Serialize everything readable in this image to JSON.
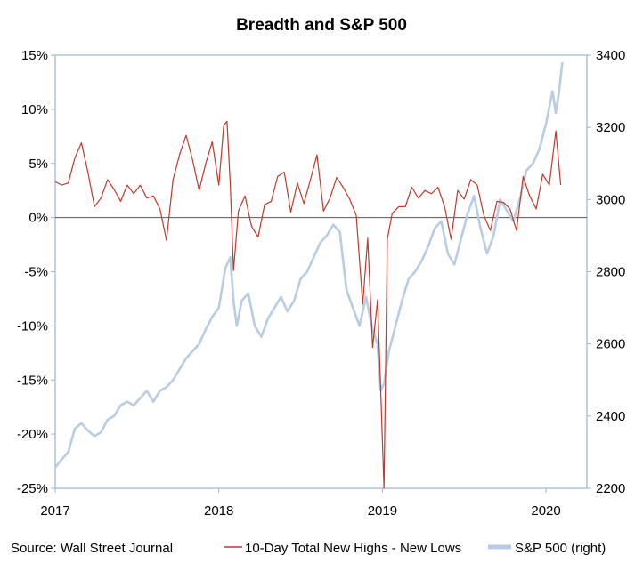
{
  "chart_data": {
    "type": "line",
    "title": "Breadth and S&P 500",
    "source": "Source: Wall Street Journal",
    "x_axis": {
      "tick_labels": [
        "2017",
        "2018",
        "2019",
        "2020"
      ],
      "tick_values": [
        2017,
        2018,
        2019,
        2020
      ],
      "range": [
        2017.0,
        2020.25
      ]
    },
    "y_left": {
      "tick_labels": [
        "15%",
        "10%",
        "5%",
        "0%",
        "-5%",
        "-10%",
        "-15%",
        "-20%",
        "-25%"
      ],
      "tick_values": [
        15,
        10,
        5,
        0,
        -5,
        -10,
        -15,
        -20,
        -25
      ],
      "range": [
        -25,
        15
      ],
      "unit": "%"
    },
    "y_right": {
      "tick_labels": [
        "3400",
        "3200",
        "3000",
        "2800",
        "2600",
        "2400",
        "2200"
      ],
      "tick_values": [
        3400,
        3200,
        3000,
        2800,
        2600,
        2400,
        2200
      ],
      "range": [
        2200,
        3400
      ]
    },
    "zero_line": true,
    "grid": false,
    "legend_position": "bottom",
    "series": [
      {
        "name": "10-Day Total New Highs - New Lows",
        "axis": "left",
        "color": "#c0392b",
        "x": [
          2017.0,
          2017.04,
          2017.08,
          2017.12,
          2017.16,
          2017.2,
          2017.24,
          2017.28,
          2017.32,
          2017.36,
          2017.4,
          2017.44,
          2017.48,
          2017.52,
          2017.56,
          2017.6,
          2017.64,
          2017.68,
          2017.72,
          2017.76,
          2017.8,
          2017.84,
          2017.88,
          2017.92,
          2017.96,
          2018.0,
          2018.03,
          2018.05,
          2018.07,
          2018.09,
          2018.12,
          2018.16,
          2018.2,
          2018.24,
          2018.28,
          2018.32,
          2018.36,
          2018.4,
          2018.44,
          2018.48,
          2018.52,
          2018.56,
          2018.6,
          2018.64,
          2018.68,
          2018.72,
          2018.76,
          2018.8,
          2018.84,
          2018.88,
          2018.91,
          2018.94,
          2018.97,
          2018.99,
          2019.01,
          2019.03,
          2019.06,
          2019.1,
          2019.14,
          2019.18,
          2019.22,
          2019.26,
          2019.3,
          2019.34,
          2019.38,
          2019.42,
          2019.46,
          2019.5,
          2019.54,
          2019.58,
          2019.62,
          2019.66,
          2019.7,
          2019.74,
          2019.78,
          2019.82,
          2019.86,
          2019.9,
          2019.94,
          2019.98,
          2020.02,
          2020.06,
          2020.09
        ],
        "values": [
          3.3,
          3.0,
          3.2,
          5.5,
          6.9,
          4.2,
          1.0,
          1.8,
          3.5,
          2.6,
          1.5,
          3.0,
          2.2,
          3.0,
          1.8,
          2.0,
          0.8,
          -2.1,
          3.5,
          5.8,
          7.6,
          5.3,
          2.5,
          5.0,
          7.0,
          3.0,
          8.5,
          8.9,
          3.0,
          -4.9,
          0.6,
          2.0,
          -0.8,
          -1.8,
          1.2,
          1.5,
          3.8,
          4.2,
          0.5,
          3.2,
          1.3,
          3.5,
          5.8,
          0.6,
          1.8,
          3.7,
          2.8,
          1.7,
          0.2,
          -8.0,
          -1.9,
          -12.0,
          -7.6,
          -16.0,
          -25.0,
          -2.0,
          0.4,
          1.0,
          1.0,
          2.8,
          1.8,
          2.5,
          2.2,
          2.8,
          1.0,
          -2.0,
          2.5,
          1.7,
          3.5,
          3.0,
          0.2,
          -1.2,
          1.5,
          1.4,
          0.8,
          -1.2,
          3.8,
          2.0,
          0.8,
          4.0,
          3.0,
          8.0,
          3.0
        ]
      },
      {
        "name": "S&P 500 (right)",
        "axis": "right",
        "color": "#b8cce4",
        "x": [
          2017.0,
          2017.04,
          2017.08,
          2017.12,
          2017.16,
          2017.2,
          2017.24,
          2017.28,
          2017.32,
          2017.36,
          2017.4,
          2017.44,
          2017.48,
          2017.52,
          2017.56,
          2017.6,
          2017.64,
          2017.68,
          2017.72,
          2017.76,
          2017.8,
          2017.84,
          2017.88,
          2017.92,
          2017.96,
          2018.0,
          2018.04,
          2018.07,
          2018.09,
          2018.11,
          2018.14,
          2018.18,
          2018.22,
          2018.26,
          2018.3,
          2018.34,
          2018.38,
          2018.42,
          2018.46,
          2018.5,
          2018.54,
          2018.58,
          2018.62,
          2018.66,
          2018.7,
          2018.74,
          2018.78,
          2018.82,
          2018.86,
          2018.9,
          2018.94,
          2018.97,
          2018.99,
          2019.01,
          2019.04,
          2019.08,
          2019.12,
          2019.16,
          2019.2,
          2019.24,
          2019.28,
          2019.32,
          2019.36,
          2019.4,
          2019.44,
          2019.48,
          2019.52,
          2019.56,
          2019.6,
          2019.64,
          2019.68,
          2019.72,
          2019.76,
          2019.8,
          2019.84,
          2019.88,
          2019.92,
          2019.96,
          2020.0,
          2020.04,
          2020.06,
          2020.08,
          2020.1
        ],
        "values": [
          2258,
          2280,
          2300,
          2365,
          2380,
          2360,
          2345,
          2355,
          2390,
          2400,
          2430,
          2440,
          2430,
          2450,
          2470,
          2440,
          2470,
          2480,
          2500,
          2530,
          2560,
          2580,
          2600,
          2640,
          2675,
          2700,
          2810,
          2840,
          2720,
          2650,
          2720,
          2740,
          2650,
          2620,
          2670,
          2700,
          2730,
          2690,
          2720,
          2780,
          2800,
          2840,
          2880,
          2900,
          2930,
          2910,
          2750,
          2700,
          2650,
          2730,
          2640,
          2600,
          2470,
          2490,
          2580,
          2650,
          2720,
          2780,
          2800,
          2830,
          2870,
          2920,
          2940,
          2850,
          2820,
          2890,
          2960,
          3010,
          2920,
          2850,
          2900,
          3000,
          2970,
          2940,
          3000,
          3080,
          3100,
          3140,
          3210,
          3300,
          3240,
          3300,
          3380
        ]
      }
    ]
  }
}
